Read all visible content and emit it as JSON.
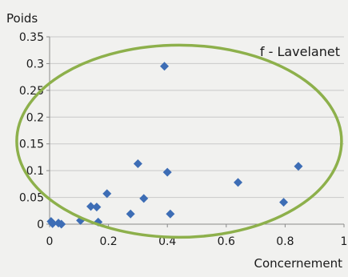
{
  "chart_data": {
    "type": "scatter",
    "ylabel": "Poids",
    "xlabel": "Concernement",
    "panel_label": "f - Lavelanet",
    "xlim": [
      0,
      1
    ],
    "ylim": [
      0,
      0.35
    ],
    "x_ticks": [
      0,
      0.2,
      0.4,
      0.6,
      0.8,
      1
    ],
    "y_ticks": [
      0,
      0.05,
      0.1,
      0.15,
      0.2,
      0.25,
      0.3,
      0.35
    ],
    "x_tick_labels": [
      "0",
      "0.2",
      "0.4",
      "0.6",
      "0.8",
      "1"
    ],
    "y_tick_labels": [
      "0",
      "0.05",
      "0.1",
      "0.15",
      "0.2",
      "0.25",
      "0.3",
      "0.35"
    ],
    "grid": "horizontal",
    "marker_color": "#3d6db5",
    "ellipse_color": "#8db04b",
    "points": [
      {
        "x": 0.005,
        "y": 0.005
      },
      {
        "x": 0.01,
        "y": 0.001
      },
      {
        "x": 0.03,
        "y": 0.002
      },
      {
        "x": 0.04,
        "y": 0.0
      },
      {
        "x": 0.105,
        "y": 0.007
      },
      {
        "x": 0.14,
        "y": 0.033
      },
      {
        "x": 0.16,
        "y": 0.032
      },
      {
        "x": 0.165,
        "y": 0.004
      },
      {
        "x": 0.195,
        "y": 0.057
      },
      {
        "x": 0.275,
        "y": 0.019
      },
      {
        "x": 0.3,
        "y": 0.113
      },
      {
        "x": 0.32,
        "y": 0.048
      },
      {
        "x": 0.39,
        "y": 0.295
      },
      {
        "x": 0.4,
        "y": 0.097
      },
      {
        "x": 0.41,
        "y": 0.019
      },
      {
        "x": 0.64,
        "y": 0.078
      },
      {
        "x": 0.795,
        "y": 0.041
      },
      {
        "x": 0.845,
        "y": 0.108
      }
    ]
  }
}
